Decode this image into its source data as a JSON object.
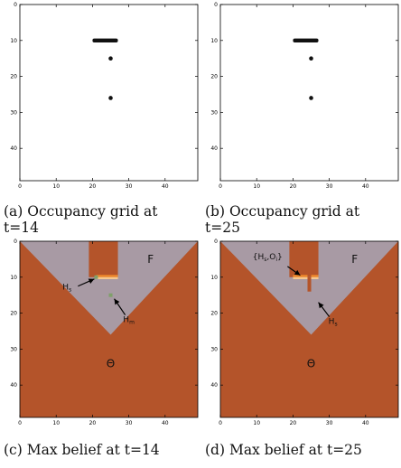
{
  "colors": {
    "free": "#a89aa4",
    "unknown": "#b4542a",
    "obstacle_dark": "#f08a2c",
    "obstacle_light": "#f6c890",
    "green": "#7fa06a",
    "occupied": "#111111"
  },
  "chart_data": [
    {
      "type": "heatmap",
      "caption": "(a) Occupancy grid at\nt=14",
      "xlim": [
        0,
        49
      ],
      "ylim": [
        0,
        49
      ],
      "xticks": [
        0,
        10,
        20,
        30,
        40
      ],
      "yticks": [
        0,
        10,
        20,
        30,
        40
      ],
      "occupied_segments": [
        {
          "x1": 20,
          "x2": 27,
          "y": 10
        }
      ],
      "occupied_points": [
        {
          "x": 25,
          "y": 15
        },
        {
          "x": 25,
          "y": 26
        }
      ]
    },
    {
      "type": "heatmap",
      "caption": "(b) Occupancy grid at\nt=25",
      "xlim": [
        0,
        49
      ],
      "ylim": [
        0,
        49
      ],
      "xticks": [
        0,
        10,
        20,
        30,
        40
      ],
      "yticks": [
        0,
        10,
        20,
        30,
        40
      ],
      "occupied_segments": [
        {
          "x1": 20,
          "x2": 27,
          "y": 10
        }
      ],
      "occupied_points": [
        {
          "x": 25,
          "y": 15
        },
        {
          "x": 25,
          "y": 26
        }
      ]
    },
    {
      "type": "heatmap",
      "caption": "(c) Max belief at t=14",
      "xlim": [
        0,
        49
      ],
      "ylim": [
        0,
        49
      ],
      "xticks": [
        0,
        10,
        20,
        30,
        40
      ],
      "yticks": [
        0,
        10,
        20,
        30,
        40
      ],
      "apex": {
        "x": 25,
        "y": 26
      },
      "notch": {
        "x1": 19,
        "x2": 27,
        "y_top": 0,
        "y_bottom": 10
      },
      "obstacle": [
        {
          "x1": 21,
          "x2": 27,
          "y": 10
        }
      ],
      "green_points": [
        {
          "x": 21,
          "y": 10
        },
        {
          "x": 25,
          "y": 15
        }
      ],
      "labels": [
        {
          "text": "F",
          "x": 36,
          "y": 5
        },
        {
          "text": "Θ",
          "x": 25,
          "y": 34
        }
      ],
      "arrows": [
        {
          "text": "H_s",
          "main": "H",
          "sub": "s",
          "tx": 13,
          "ty": 13.5,
          "x1": 16,
          "y1": 12.5,
          "x2": 20.5,
          "y2": 10.5
        },
        {
          "text": "H_m",
          "main": "H",
          "sub": "m",
          "tx": 30,
          "ty": 22.5,
          "x1": 29,
          "y1": 20.5,
          "x2": 26,
          "y2": 16
        }
      ]
    },
    {
      "type": "heatmap",
      "caption": "(d) Max belief at t=25",
      "xlim": [
        0,
        49
      ],
      "ylim": [
        0,
        49
      ],
      "xticks": [
        0,
        10,
        20,
        30,
        40
      ],
      "yticks": [
        0,
        10,
        20,
        30,
        40
      ],
      "apex": {
        "x": 25,
        "y": 26
      },
      "notch": {
        "x1": 19,
        "x2": 27,
        "y_top": 0,
        "y_bottom": 10
      },
      "notch2": {
        "x1": 24,
        "x2": 25,
        "y_top": 10,
        "y_bottom": 14
      },
      "obstacle": [
        {
          "x1": 20,
          "x2": 24,
          "y": 10
        },
        {
          "x1": 25,
          "x2": 27,
          "y": 10
        }
      ],
      "green_points": [],
      "labels": [
        {
          "text": "F",
          "x": 37,
          "y": 5
        },
        {
          "text": "Θ",
          "x": 25,
          "y": 34
        }
      ],
      "arrows": [
        {
          "text": "{H_s,O_i}",
          "main": "{H",
          "sub": "s",
          "mid": ",O",
          "sub2": "i",
          "end": "}",
          "tx": 13,
          "ty": 5,
          "x1": 18.5,
          "y1": 7,
          "x2": 22,
          "y2": 9.5
        },
        {
          "text": "H_s",
          "main": "H",
          "sub": "s",
          "tx": 31,
          "ty": 23,
          "x1": 30,
          "y1": 21,
          "x2": 27,
          "y2": 17
        }
      ]
    }
  ]
}
